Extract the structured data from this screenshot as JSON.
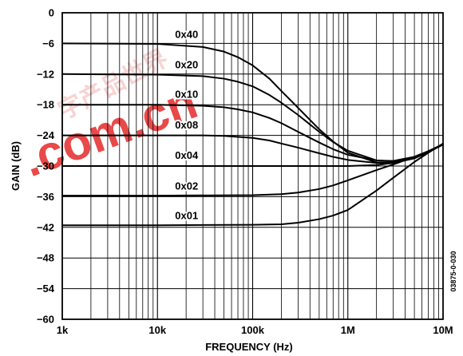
{
  "chart_data": {
    "type": "line",
    "title": "",
    "xlabel": "FREQUENCY (Hz)",
    "ylabel": "GAIN (dB)",
    "x_scale": "log",
    "xlim": [
      1000,
      10000000
    ],
    "ylim": [
      -60,
      0
    ],
    "grid": true,
    "x_ticks": [
      {
        "value": 1000,
        "label": "1k"
      },
      {
        "value": 10000,
        "label": "10k"
      },
      {
        "value": 100000,
        "label": "100k"
      },
      {
        "value": 1000000,
        "label": "1M"
      },
      {
        "value": 10000000,
        "label": "10M"
      }
    ],
    "y_ticks": [
      {
        "value": 0,
        "label": "0"
      },
      {
        "value": -6,
        "label": "−6"
      },
      {
        "value": -12,
        "label": "−12"
      },
      {
        "value": -18,
        "label": "−18"
      },
      {
        "value": -24,
        "label": "−24"
      },
      {
        "value": -30,
        "label": "−30"
      },
      {
        "value": -36,
        "label": "−36"
      },
      {
        "value": -42,
        "label": "−42"
      },
      {
        "value": -48,
        "label": "−48"
      },
      {
        "value": -54,
        "label": "−54"
      },
      {
        "value": -60,
        "label": "−60"
      }
    ],
    "annotations": [
      {
        "text": "0x40",
        "x": 10000,
        "y": -4.3
      },
      {
        "text": "0x20",
        "x": 10000,
        "y": -10.2
      },
      {
        "text": "0x10",
        "x": 10000,
        "y": -16.0
      },
      {
        "text": "0x08",
        "x": 10000,
        "y": -22.0
      },
      {
        "text": "0x04",
        "x": 10000,
        "y": -28.0
      },
      {
        "text": "0x02",
        "x": 10000,
        "y": -34.0
      },
      {
        "text": "0x01",
        "x": 10000,
        "y": -39.8
      }
    ],
    "series": [
      {
        "name": "0x40",
        "x": [
          1000,
          10000,
          30000,
          50000,
          70000,
          100000,
          150000,
          200000,
          300000,
          500000,
          700000,
          1000000,
          2000000,
          3000000,
          5000000,
          7000000,
          10000000
        ],
        "y": [
          -6,
          -6.1,
          -6.7,
          -7.6,
          -8.7,
          -10.3,
          -12.9,
          -15.3,
          -18.6,
          -22.8,
          -25.2,
          -27.4,
          -29.3,
          -29.4,
          -28.5,
          -27.3,
          -25.8
        ]
      },
      {
        "name": "0x20",
        "x": [
          1000,
          10000,
          30000,
          50000,
          70000,
          100000,
          150000,
          200000,
          300000,
          500000,
          700000,
          1000000,
          2000000,
          3000000,
          5000000,
          7000000,
          10000000
        ],
        "y": [
          -12,
          -12.1,
          -12.4,
          -12.9,
          -13.5,
          -14.4,
          -16.1,
          -17.6,
          -20.0,
          -23.3,
          -25.3,
          -27.0,
          -28.9,
          -29.1,
          -28.3,
          -27.2,
          -25.8
        ]
      },
      {
        "name": "0x10",
        "x": [
          1000,
          10000,
          30000,
          50000,
          70000,
          100000,
          150000,
          200000,
          300000,
          500000,
          700000,
          1000000,
          2000000,
          3000000,
          5000000,
          7000000,
          10000000
        ],
        "y": [
          -18,
          -18.0,
          -18.2,
          -18.5,
          -18.9,
          -19.5,
          -20.6,
          -21.6,
          -23.3,
          -25.4,
          -26.7,
          -27.8,
          -28.9,
          -29.0,
          -28.2,
          -27.1,
          -25.8
        ]
      },
      {
        "name": "0x08",
        "x": [
          1000,
          10000,
          30000,
          50000,
          70000,
          100000,
          150000,
          200000,
          300000,
          500000,
          700000,
          1000000,
          2000000,
          3000000,
          5000000,
          7000000,
          10000000
        ],
        "y": [
          -24,
          -24.0,
          -24.0,
          -24.1,
          -24.3,
          -24.5,
          -25.0,
          -25.6,
          -26.4,
          -27.5,
          -28.2,
          -28.8,
          -29.4,
          -29.3,
          -28.3,
          -27.2,
          -25.8
        ]
      },
      {
        "name": "0x04",
        "x": [
          1000,
          10000,
          100000,
          300000,
          1000000,
          2000000,
          3000000,
          5000000,
          7000000,
          10000000
        ],
        "y": [
          -30,
          -30.0,
          -30.0,
          -30.0,
          -30.0,
          -29.8,
          -29.4,
          -28.3,
          -27.2,
          -25.8
        ]
      },
      {
        "name": "0x02",
        "x": [
          1000,
          10000,
          100000,
          200000,
          300000,
          500000,
          700000,
          1000000,
          2000000,
          3000000,
          5000000,
          7000000,
          10000000
        ],
        "y": [
          -35.8,
          -35.8,
          -35.7,
          -35.5,
          -35.2,
          -34.5,
          -33.8,
          -32.8,
          -30.8,
          -29.7,
          -28.2,
          -27.1,
          -25.7
        ]
      },
      {
        "name": "0x01",
        "x": [
          1000,
          10000,
          100000,
          200000,
          300000,
          500000,
          700000,
          1000000,
          2000000,
          3000000,
          5000000,
          7000000,
          10000000
        ],
        "y": [
          -41.6,
          -41.6,
          -41.5,
          -41.4,
          -41.1,
          -40.4,
          -39.7,
          -38.6,
          -34.8,
          -32.3,
          -29.2,
          -27.4,
          -25.6
        ]
      }
    ]
  },
  "figure_id": "03875-0-030",
  "watermark": {
    "chinese_text": "字产品世界",
    "domain_text": ".com.cn",
    "chinese_color": "#f3b0b0",
    "domain_color": "#e84040"
  },
  "colors": {
    "curve": "#000000",
    "grid": "#000000",
    "axis": "#000000",
    "background": "#ffffff"
  }
}
